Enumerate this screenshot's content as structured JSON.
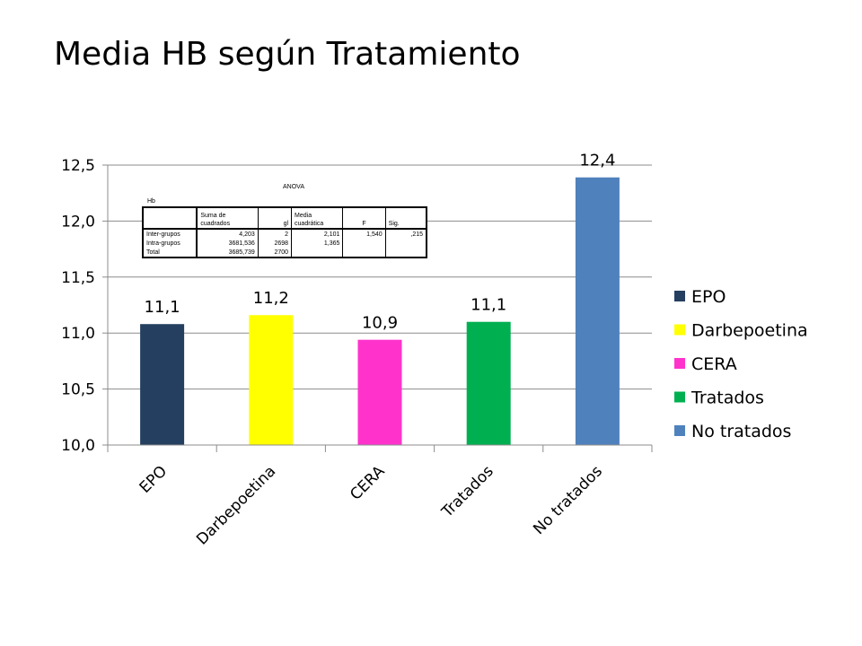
{
  "slide": {
    "title": "Media HB según Tratamiento"
  },
  "chart_data": {
    "type": "bar",
    "categories": [
      "EPO",
      "Darbepoetina",
      "CERA",
      "Tratados",
      "No tratados"
    ],
    "values": [
      11.08,
      11.16,
      10.94,
      11.1,
      12.39
    ],
    "data_labels": [
      "11,1",
      "11,2",
      "10,9",
      "11,1",
      "12,4"
    ],
    "colors": [
      "#243F60",
      "#FFFF00",
      "#FF33CC",
      "#00B050",
      "#4F81BD"
    ],
    "ylim": [
      10.0,
      12.5
    ],
    "yticks": [
      10.0,
      10.5,
      11.0,
      11.5,
      12.0,
      12.5
    ],
    "ytick_labels": [
      "10,0",
      "10,5",
      "11,0",
      "11,5",
      "12,0",
      "12,5"
    ],
    "grid": true,
    "legend_position": "right",
    "legend": [
      "EPO",
      "Darbepoetina",
      "CERA",
      "Tratados",
      "No tratados"
    ]
  },
  "anova": {
    "title": "ANOVA",
    "subtitle": "Hb",
    "headers": [
      "",
      "Suma de cuadrados",
      "gl",
      "Media cuadrática",
      "F",
      "Sig."
    ],
    "rows": [
      [
        "Inter-grupos",
        "4,203",
        "2",
        "2,101",
        "1,540",
        ",215"
      ],
      [
        "Intra-grupos",
        "3681,536",
        "2698",
        "1,365",
        "",
        ""
      ],
      [
        "Total",
        "3685,739",
        "2700",
        "",
        "",
        ""
      ]
    ]
  }
}
